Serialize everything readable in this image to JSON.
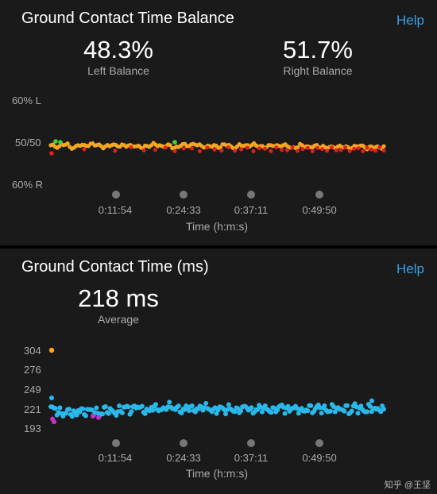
{
  "colors": {
    "accent_blue": "#3aa0e8",
    "balance_orange": "#f5a623",
    "balance_red": "#e0201a",
    "balance_green": "#4cd137",
    "gct_cyan": "#2ab8ea",
    "gct_magenta": "#c830c8",
    "gct_orange": "#f5a623"
  },
  "balance": {
    "title": "Ground Contact Time Balance",
    "help": "Help",
    "left_value": "48.3%",
    "left_label": "Left Balance",
    "right_value": "51.7%",
    "right_label": "Right Balance",
    "y_labels": [
      "60% L",
      "50/50",
      "60% R"
    ],
    "time_labels": [
      "0:11:54",
      "0:24:33",
      "0:37:11",
      "0:49:50"
    ],
    "axis_label": "Time (h:m:s)"
  },
  "gct": {
    "title": "Ground Contact Time (ms)",
    "help": "Help",
    "average_value": "218 ms",
    "average_label": "Average",
    "y_labels": [
      "304",
      "276",
      "249",
      "221",
      "193"
    ],
    "time_labels": [
      "0:11:54",
      "0:24:33",
      "0:37:11",
      "0:49:50"
    ],
    "axis_label": "Time (h:m:s)"
  },
  "watermark": "知乎 @王坚",
  "chart_data": [
    {
      "type": "scatter",
      "title": "Ground Contact Time Balance",
      "xlabel": "Time (h:m:s)",
      "ylabel": "",
      "x_ticks": [
        "0:11:54",
        "0:24:33",
        "0:37:11",
        "0:49:50"
      ],
      "y_ticks": [
        "60% L",
        "50/50",
        "60% R"
      ],
      "ylim": [
        -10,
        10
      ],
      "series": [
        {
          "color": "orange",
          "approx_value": 0,
          "values": [
            0.0,
            0.3,
            -0.2,
            0.1,
            0.4,
            0.2,
            -0.1,
            0.3,
            0.0,
            0.2,
            -0.3,
            0.1,
            0.3,
            0.0,
            -0.2,
            0.2,
            0.4,
            0.1,
            -0.1,
            0.0,
            0.2,
            -0.2,
            0.1,
            0.3,
            0.0,
            -0.1,
            0.2,
            0.0,
            -0.3,
            0.1,
            -0.2,
            0.0,
            -0.4,
            -0.1,
            -0.3,
            -0.2,
            0.0,
            -0.4,
            -0.2,
            -0.1
          ]
        },
        {
          "color": "red",
          "approx_value": -0.5
        },
        {
          "color": "green",
          "approx_value": 0.8
        }
      ]
    },
    {
      "type": "scatter",
      "title": "Ground Contact Time (ms)",
      "xlabel": "Time (h:m:s)",
      "ylabel": "",
      "x_ticks": [
        "0:11:54",
        "0:24:33",
        "0:37:11",
        "0:49:50"
      ],
      "y_ticks": [
        304,
        276,
        249,
        221,
        193
      ],
      "ylim": [
        190,
        310
      ],
      "series": [
        {
          "color": "cyan",
          "values": [
            221,
            216,
            214,
            217,
            213,
            219,
            215,
            218,
            216,
            214,
            220,
            217,
            215,
            219,
            222,
            218,
            224,
            220,
            217,
            223,
            221,
            219,
            225,
            222,
            220,
            218,
            223,
            219,
            221,
            224,
            220,
            217,
            222,
            219,
            221,
            218,
            220,
            223,
            217,
            219,
            222,
            220,
            218,
            221,
            224,
            219,
            222,
            220,
            217,
            221,
            219,
            223,
            220,
            218,
            222,
            219,
            221,
            217,
            224,
            220,
            218,
            222,
            219,
            221,
            216
          ]
        },
        {
          "color": "magenta",
          "values": [
            206,
            202,
            210,
            208
          ]
        },
        {
          "color": "orange",
          "values": [
            304
          ]
        }
      ]
    }
  ]
}
